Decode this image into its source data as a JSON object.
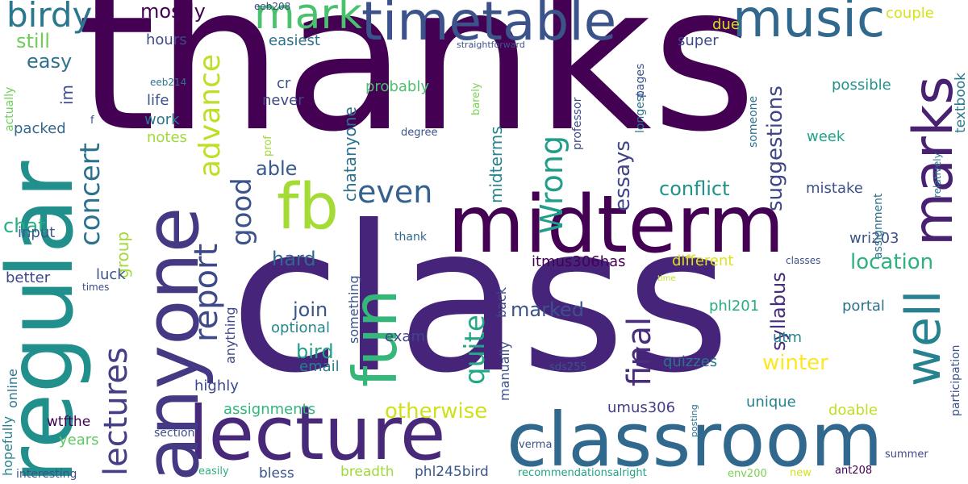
{
  "wordcloud": {
    "background": "#ffffff",
    "palette": "viridis",
    "words": [
      {
        "text": "thanks",
        "weight": 1.0,
        "color": "#440154"
      },
      {
        "text": "class",
        "weight": 0.95,
        "color": "#46247a"
      },
      {
        "text": "regular",
        "weight": 0.62,
        "color": "#21908c"
      },
      {
        "text": "midterm",
        "weight": 0.55,
        "color": "#440154"
      },
      {
        "text": "classroom",
        "weight": 0.55,
        "color": "#31688e"
      },
      {
        "text": "lecture",
        "weight": 0.55,
        "color": "#482878"
      },
      {
        "text": "anyone",
        "weight": 0.55,
        "color": "#443983"
      },
      {
        "text": "timetable",
        "weight": 0.45,
        "color": "#3b528b"
      },
      {
        "text": "music",
        "weight": 0.42,
        "color": "#31688e"
      },
      {
        "text": "fb",
        "weight": 0.42,
        "color": "#a5db36"
      },
      {
        "text": "fun",
        "weight": 0.42,
        "color": "#35b779"
      },
      {
        "text": "marks",
        "weight": 0.4,
        "color": "#482173"
      },
      {
        "text": "well",
        "weight": 0.38,
        "color": "#26828e"
      },
      {
        "text": "birdy",
        "weight": 0.35,
        "color": "#2a788e"
      },
      {
        "text": "mark",
        "weight": 0.35,
        "color": "#4ac16d"
      },
      {
        "text": "advance",
        "weight": 0.3,
        "color": "#bddf26"
      },
      {
        "text": "lectures",
        "weight": 0.3,
        "color": "#433e85"
      },
      {
        "text": "report",
        "weight": 0.3,
        "color": "#3e4989"
      },
      {
        "text": "final",
        "weight": 0.3,
        "color": "#472d7b"
      },
      {
        "text": "even",
        "weight": 0.28,
        "color": "#34618d"
      },
      {
        "text": "Wrong",
        "weight": 0.28,
        "color": "#1f9e89"
      },
      {
        "text": "quite",
        "weight": 0.26,
        "color": "#22a884"
      },
      {
        "text": "concert",
        "weight": 0.26,
        "color": "#2c728e"
      },
      {
        "text": "good",
        "weight": 0.26,
        "color": "#3b528b"
      },
      {
        "text": "winter",
        "weight": 0.22,
        "color": "#fde725"
      },
      {
        "text": "otherwise",
        "weight": 0.22,
        "color": "#d0e11c"
      },
      {
        "text": "location",
        "weight": 0.22,
        "color": "#2db27d"
      },
      {
        "text": "essays",
        "weight": 0.22,
        "color": "#414487"
      },
      {
        "text": "suggestions",
        "weight": 0.22,
        "color": "#3f4788"
      },
      {
        "text": "mostly",
        "weight": 0.2,
        "color": "#440154"
      },
      {
        "text": "conflict",
        "weight": 0.2,
        "color": "#21918c"
      },
      {
        "text": "syllabus",
        "weight": 0.2,
        "color": "#472d7b"
      },
      {
        "text": "marked",
        "weight": 0.2,
        "color": "#3b528b"
      },
      {
        "text": "join",
        "weight": 0.2,
        "color": "#39568c"
      },
      {
        "text": "bird",
        "weight": 0.2,
        "color": "#1fa187"
      },
      {
        "text": "hard",
        "weight": 0.2,
        "color": "#31688e"
      },
      {
        "text": "still",
        "weight": 0.18,
        "color": "#6ece58"
      },
      {
        "text": "easy",
        "weight": 0.18,
        "color": "#2c728e"
      },
      {
        "text": "chat",
        "weight": 0.18,
        "color": "#27ad81"
      },
      {
        "text": "able",
        "weight": 0.18,
        "color": "#38598c"
      },
      {
        "text": "group",
        "weight": 0.18,
        "color": "#a0da39"
      },
      {
        "text": "midterms",
        "weight": 0.18,
        "color": "#25838e"
      },
      {
        "text": "chatanyone",
        "weight": 0.18,
        "color": "#2d708e"
      },
      {
        "text": "im",
        "weight": 0.17,
        "color": "#3e4989"
      },
      {
        "text": "probably",
        "weight": 0.16,
        "color": "#4ac16d"
      },
      {
        "text": "notes",
        "weight": 0.15,
        "color": "#a0da39"
      },
      {
        "text": "work",
        "weight": 0.15,
        "color": "#2b748e"
      },
      {
        "text": "life",
        "weight": 0.15,
        "color": "#3b528b"
      },
      {
        "text": "hours",
        "weight": 0.15,
        "color": "#3e4989"
      },
      {
        "text": "easiest",
        "weight": 0.15,
        "color": "#2d708e"
      },
      {
        "text": "cr",
        "weight": 0.15,
        "color": "#3b528b"
      },
      {
        "text": "never",
        "weight": 0.15,
        "color": "#3e4989"
      },
      {
        "text": "packed",
        "weight": 0.15,
        "color": "#31688e"
      },
      {
        "text": "input",
        "weight": 0.15,
        "color": "#38598c"
      },
      {
        "text": "better",
        "weight": 0.15,
        "color": "#3e4989"
      },
      {
        "text": "luck",
        "weight": 0.15,
        "color": "#3b528b"
      },
      {
        "text": "email",
        "weight": 0.15,
        "color": "#277f8e"
      },
      {
        "text": "optional",
        "weight": 0.15,
        "color": "#25858e"
      },
      {
        "text": "exam",
        "weight": 0.15,
        "color": "#3f4788"
      },
      {
        "text": "highly",
        "weight": 0.15,
        "color": "#3e4989"
      },
      {
        "text": "years",
        "weight": 0.15,
        "color": "#5ec962"
      },
      {
        "text": "assignments",
        "weight": 0.15,
        "color": "#2fb47c"
      },
      {
        "text": "quizzes",
        "weight": 0.15,
        "color": "#2c728e"
      },
      {
        "text": "unique",
        "weight": 0.15,
        "color": "#26828e"
      },
      {
        "text": "doable",
        "weight": 0.15,
        "color": "#bddf26"
      },
      {
        "text": "portal",
        "weight": 0.15,
        "color": "#2c728e"
      },
      {
        "text": "utm",
        "weight": 0.15,
        "color": "#25858e"
      },
      {
        "text": "phl201",
        "weight": 0.15,
        "color": "#27ad81"
      },
      {
        "text": "different",
        "weight": 0.15,
        "color": "#dde318"
      },
      {
        "text": "wri203",
        "weight": 0.15,
        "color": "#3b528b"
      },
      {
        "text": "mistake",
        "weight": 0.15,
        "color": "#3b528b"
      },
      {
        "text": "week",
        "weight": 0.15,
        "color": "#20a386"
      },
      {
        "text": "possible",
        "weight": 0.15,
        "color": "#21918c"
      },
      {
        "text": "super",
        "weight": 0.15,
        "color": "#3e4989"
      },
      {
        "text": "due",
        "weight": 0.15,
        "color": "#cae11f"
      },
      {
        "text": "couple",
        "weight": 0.15,
        "color": "#d8e219"
      },
      {
        "text": "textbook",
        "weight": 0.15,
        "color": "#2a788e"
      },
      {
        "text": "umus306",
        "weight": 0.15,
        "color": "#433e85"
      },
      {
        "text": "itmus306has",
        "weight": 0.15,
        "color": "#440154"
      },
      {
        "text": "manually",
        "weight": 0.14,
        "color": "#3b528b"
      },
      {
        "text": "back",
        "weight": 0.14,
        "color": "#3e4989"
      },
      {
        "text": "something",
        "weight": 0.14,
        "color": "#3b528b"
      },
      {
        "text": "anything",
        "weight": 0.14,
        "color": "#3e4989"
      },
      {
        "text": "hopefully",
        "weight": 0.14,
        "color": "#26828e"
      },
      {
        "text": "online",
        "weight": 0.14,
        "color": "#2c728e"
      },
      {
        "text": "wtfthe",
        "weight": 0.14,
        "color": "#440154"
      },
      {
        "text": "breadth",
        "weight": 0.14,
        "color": "#a0da39"
      },
      {
        "text": "phl245bird",
        "weight": 0.14,
        "color": "#39568c"
      },
      {
        "text": "bless",
        "weight": 0.14,
        "color": "#3b528b"
      },
      {
        "text": "someone",
        "weight": 0.13,
        "color": "#2c728e"
      },
      {
        "text": "longest",
        "weight": 0.13,
        "color": "#2c728e"
      },
      {
        "text": "pages",
        "weight": 0.13,
        "color": "#3b528b"
      },
      {
        "text": "professor",
        "weight": 0.13,
        "color": "#3e4989"
      },
      {
        "text": "assignment",
        "weight": 0.13,
        "color": "#2c728e"
      },
      {
        "text": "participation",
        "weight": 0.13,
        "color": "#3b528b"
      },
      {
        "text": "thank",
        "weight": 0.12,
        "color": "#31688e"
      },
      {
        "text": "actually",
        "weight": 0.12,
        "color": "#6ece58"
      },
      {
        "text": "interesting",
        "weight": 0.12,
        "color": "#3b528b"
      },
      {
        "text": "section",
        "weight": 0.12,
        "color": "#3b528b"
      },
      {
        "text": "recommendationsalright",
        "weight": 0.12,
        "color": "#20a386"
      },
      {
        "text": "verma",
        "weight": 0.12,
        "color": "#3b528b"
      },
      {
        "text": "sds255",
        "weight": 0.12,
        "color": "#3b528b"
      },
      {
        "text": "env200",
        "weight": 0.12,
        "color": "#7ad151"
      },
      {
        "text": "new",
        "weight": 0.12,
        "color": "#d2e21b"
      },
      {
        "text": "ant208",
        "weight": 0.12,
        "color": "#440154"
      },
      {
        "text": "summer",
        "weight": 0.12,
        "color": "#3e4989"
      },
      {
        "text": "classes",
        "weight": 0.11,
        "color": "#3b528b"
      },
      {
        "text": "relatively",
        "weight": 0.11,
        "color": "#2a788e"
      },
      {
        "text": "eeb208",
        "weight": 0.11,
        "color": "#3e4989"
      },
      {
        "text": "eeb214",
        "weight": 0.11,
        "color": "#2c728e"
      },
      {
        "text": "straightforward",
        "weight": 0.1,
        "color": "#3b528b"
      },
      {
        "text": "degree",
        "weight": 0.11,
        "color": "#3b528b"
      },
      {
        "text": "barely",
        "weight": 0.11,
        "color": "#7ad151"
      },
      {
        "text": "prof",
        "weight": 0.11,
        "color": "#a0da39"
      },
      {
        "text": "f",
        "weight": 0.11,
        "color": "#3b528b"
      },
      {
        "text": "times",
        "weight": 0.1,
        "color": "#3e4989"
      },
      {
        "text": "posting",
        "weight": 0.1,
        "color": "#2c728e"
      },
      {
        "text": "easily",
        "weight": 0.11,
        "color": "#2db27d"
      },
      {
        "text": "time",
        "weight": 0.09,
        "color": "#bddf26"
      }
    ]
  }
}
